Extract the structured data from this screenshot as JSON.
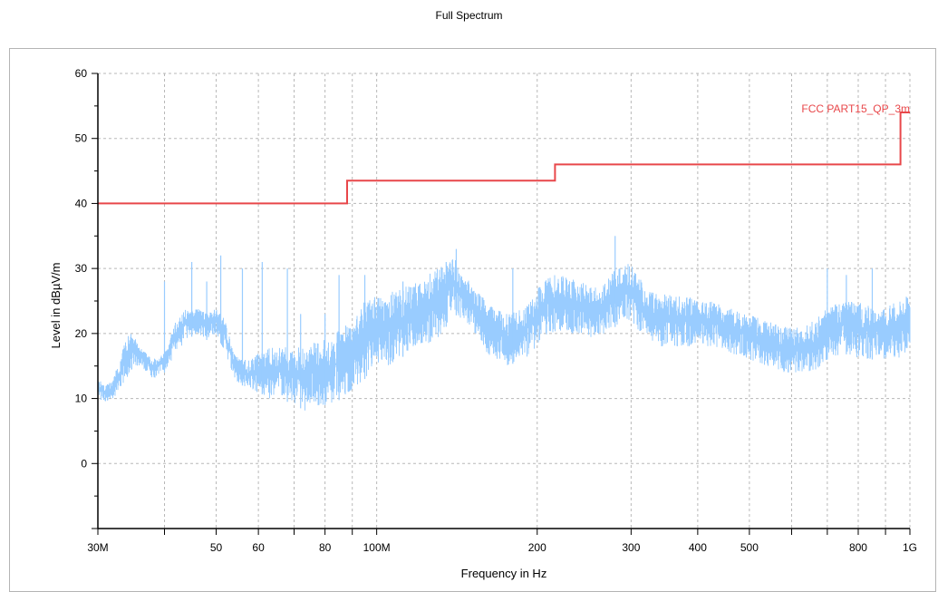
{
  "chart_data": {
    "type": "line",
    "title": "Full Spectrum",
    "xlabel": "Frequency in Hz",
    "ylabel": "Level in dBµV/m",
    "x_scale": "log",
    "xlim": [
      30000000,
      1000000000
    ],
    "ylim": [
      -10,
      60
    ],
    "grid": true,
    "x_ticks": [
      {
        "value": 30000000,
        "label": "30M"
      },
      {
        "value": 40000000,
        "label": ""
      },
      {
        "value": 50000000,
        "label": "50"
      },
      {
        "value": 60000000,
        "label": "60"
      },
      {
        "value": 70000000,
        "label": ""
      },
      {
        "value": 80000000,
        "label": "80"
      },
      {
        "value": 90000000,
        "label": ""
      },
      {
        "value": 100000000,
        "label": "100M"
      },
      {
        "value": 200000000,
        "label": "200"
      },
      {
        "value": 300000000,
        "label": "300"
      },
      {
        "value": 400000000,
        "label": "400"
      },
      {
        "value": 500000000,
        "label": "500"
      },
      {
        "value": 600000000,
        "label": ""
      },
      {
        "value": 700000000,
        "label": ""
      },
      {
        "value": 800000000,
        "label": "800"
      },
      {
        "value": 900000000,
        "label": ""
      },
      {
        "value": 1000000000,
        "label": "1G"
      }
    ],
    "y_ticks": [
      {
        "value": 60,
        "label": "60"
      },
      {
        "value": 50,
        "label": "50"
      },
      {
        "value": 40,
        "label": "40"
      },
      {
        "value": 30,
        "label": "30"
      },
      {
        "value": 20,
        "label": "20"
      },
      {
        "value": 10,
        "label": "10"
      },
      {
        "value": 0,
        "label": "0"
      },
      {
        "value": -10,
        "label": ""
      }
    ],
    "series": [
      {
        "name": "FCC PART15_QP_3m",
        "color": "#e8474a",
        "style": "step",
        "x": [
          30000000,
          88000000,
          88000000,
          216000000,
          216000000,
          960000000,
          960000000,
          1000000000
        ],
        "y": [
          40,
          40,
          43.5,
          43.5,
          46,
          46,
          54,
          54
        ]
      },
      {
        "color": "#99ccff",
        "style": "noise-envelope",
        "x": [
          30000000,
          31000000,
          32000000,
          33000000,
          34000000,
          35000000,
          36000000,
          37000000,
          38000000,
          40000000,
          42000000,
          44000000,
          46000000,
          48000000,
          50000000,
          52000000,
          54000000,
          56000000,
          58000000,
          60000000,
          63000000,
          66000000,
          70000000,
          74000000,
          78000000,
          82000000,
          86000000,
          90000000,
          95000000,
          100000000,
          105000000,
          110000000,
          120000000,
          130000000,
          140000000,
          150000000,
          160000000,
          175000000,
          190000000,
          200000000,
          210000000,
          220000000,
          240000000,
          260000000,
          280000000,
          300000000,
          320000000,
          340000000,
          360000000,
          380000000,
          400000000,
          430000000,
          460000000,
          500000000,
          540000000,
          580000000,
          620000000,
          660000000,
          700000000,
          750000000,
          800000000,
          850000000,
          900000000,
          950000000,
          1000000000
        ],
        "y_low": [
          10,
          9.5,
          10,
          11,
          13,
          15,
          15,
          14,
          13,
          14,
          17,
          19,
          20,
          19,
          20,
          17,
          13,
          12,
          11,
          11,
          10,
          10,
          9,
          8,
          9,
          9,
          10,
          11,
          13,
          15,
          15,
          16,
          18,
          19,
          23,
          21,
          17,
          15,
          16,
          18,
          20,
          20,
          20,
          19,
          21,
          22,
          19,
          18,
          18,
          18,
          18,
          18,
          17,
          16,
          15,
          14,
          14,
          14,
          16,
          17,
          16,
          16,
          16,
          16,
          17
        ],
        "y_high": [
          13,
          12,
          13,
          16,
          20,
          20,
          18,
          17,
          16,
          17,
          22,
          24,
          24,
          23,
          24,
          22,
          17,
          16,
          16,
          17,
          18,
          18,
          18,
          18,
          19,
          19,
          21,
          22,
          25,
          26,
          26,
          27,
          28,
          30,
          32,
          28,
          25,
          23,
          24,
          27,
          29,
          29,
          28,
          27,
          30,
          31,
          27,
          26,
          26,
          26,
          25,
          25,
          24,
          23,
          22,
          21,
          21,
          22,
          24,
          25,
          25,
          24,
          24,
          25,
          26
        ],
        "spikes": [
          {
            "x": 40000000,
            "y": 28
          },
          {
            "x": 45000000,
            "y": 31
          },
          {
            "x": 48000000,
            "y": 28
          },
          {
            "x": 51000000,
            "y": 32
          },
          {
            "x": 56000000,
            "y": 30
          },
          {
            "x": 61000000,
            "y": 31
          },
          {
            "x": 68000000,
            "y": 30
          },
          {
            "x": 72000000,
            "y": 23
          },
          {
            "x": 80000000,
            "y": 23
          },
          {
            "x": 85000000,
            "y": 29
          },
          {
            "x": 95000000,
            "y": 29
          },
          {
            "x": 112000000,
            "y": 28
          },
          {
            "x": 135000000,
            "y": 31
          },
          {
            "x": 141000000,
            "y": 33
          },
          {
            "x": 180000000,
            "y": 30
          },
          {
            "x": 280000000,
            "y": 35
          },
          {
            "x": 700000000,
            "y": 30
          },
          {
            "x": 760000000,
            "y": 29
          },
          {
            "x": 850000000,
            "y": 30
          }
        ]
      }
    ]
  }
}
